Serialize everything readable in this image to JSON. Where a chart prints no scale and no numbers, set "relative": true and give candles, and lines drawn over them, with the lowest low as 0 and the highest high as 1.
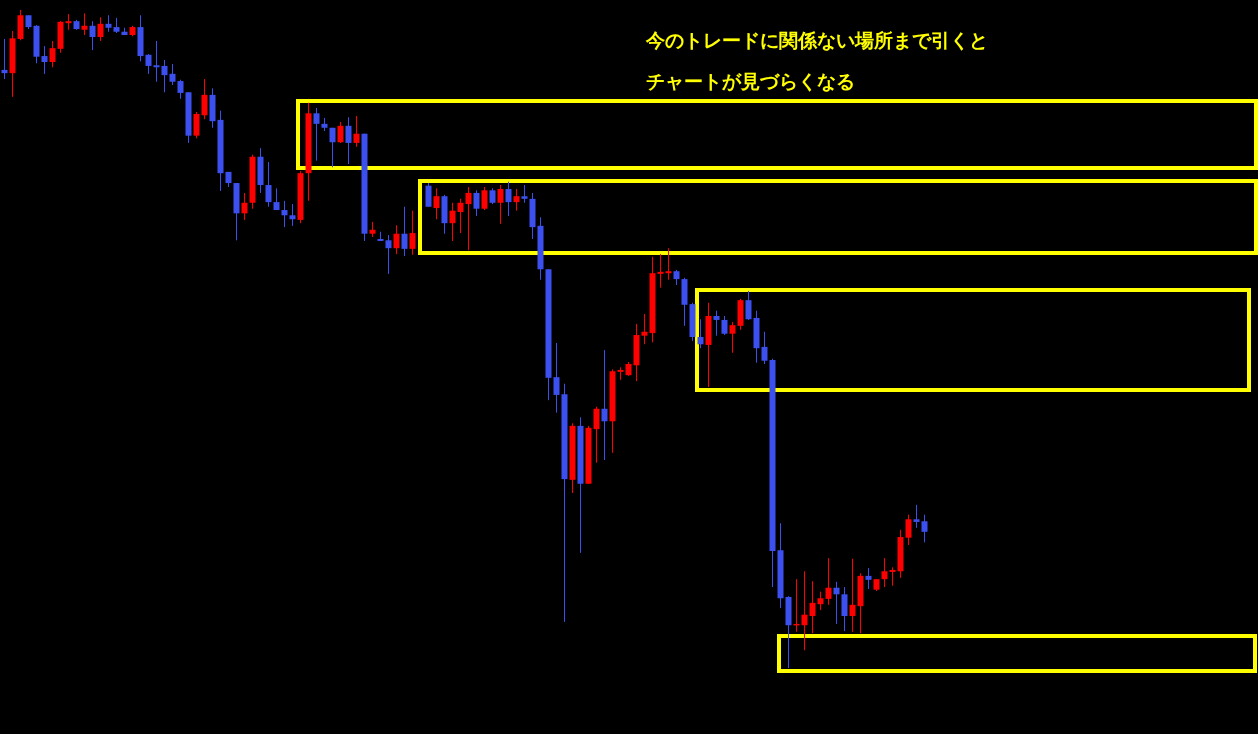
{
  "chart_data": {
    "type": "candlestick",
    "relative": true,
    "categories": [
      null,
      null,
      null,
      null,
      null,
      null,
      null,
      null,
      null,
      null,
      null,
      null,
      null,
      null,
      null,
      null,
      null,
      null,
      null,
      null,
      null,
      null,
      null,
      null,
      null,
      null,
      null,
      null,
      null,
      null,
      null,
      null,
      null,
      null,
      null,
      null,
      null,
      null,
      null,
      null,
      null,
      null,
      null,
      null,
      null,
      null,
      null,
      null,
      null,
      null,
      null,
      null,
      null,
      null,
      null,
      null,
      null,
      null,
      null,
      null,
      null,
      null,
      null,
      null,
      null,
      null,
      null,
      null,
      null,
      null,
      null,
      null,
      null,
      null,
      null,
      null,
      null,
      null,
      null,
      null,
      null,
      null,
      null,
      null,
      null,
      null,
      null,
      null,
      null,
      null,
      null,
      null,
      null,
      null,
      null,
      null,
      null,
      null,
      null,
      null,
      null,
      null,
      null,
      null,
      null,
      null,
      null,
      null,
      null,
      null,
      null,
      null,
      null,
      null,
      null,
      null
    ],
    "ohlc": [
      [
        0.909,
        0.956,
        0.895,
        0.904
      ],
      [
        0.904,
        0.968,
        0.868,
        0.957
      ],
      [
        0.956,
        1,
        0.954,
        0.992
      ],
      [
        0.992,
        0.992,
        0.971,
        0.974
      ],
      [
        0.976,
        0.977,
        0.919,
        0.929
      ],
      [
        0.93,
        0.945,
        0.903,
        0.921
      ],
      [
        0.921,
        0.953,
        0.913,
        0.942
      ],
      [
        0.941,
        0.983,
        0.935,
        0.982
      ],
      [
        0.98,
        0.994,
        0.97,
        0.983
      ],
      [
        0.983,
        0.985,
        0.97,
        0.971
      ],
      [
        0.97,
        0.995,
        0.962,
        0.976
      ],
      [
        0.976,
        0.983,
        0.939,
        0.959
      ],
      [
        0.959,
        0.989,
        0.953,
        0.979
      ],
      [
        0.979,
        0.992,
        0.967,
        0.973
      ],
      [
        0.974,
        0.988,
        0.965,
        0.967
      ],
      [
        0.967,
        0.973,
        0.962,
        0.962
      ],
      [
        0.962,
        0.976,
        0.96,
        0.974
      ],
      [
        0.974,
        0.992,
        0.922,
        0.93
      ],
      [
        0.932,
        0.933,
        0.903,
        0.915
      ],
      [
        0.916,
        0.953,
        0.891,
        0.913
      ],
      [
        0.915,
        0.924,
        0.875,
        0.901
      ],
      [
        0.903,
        0.918,
        0.886,
        0.891
      ],
      [
        0.892,
        0.894,
        0.865,
        0.874
      ],
      [
        0.875,
        0.875,
        0.798,
        0.809
      ],
      [
        0.809,
        0.845,
        0.805,
        0.842
      ],
      [
        0.84,
        0.895,
        0.834,
        0.871
      ],
      [
        0.871,
        0.881,
        0.821,
        0.831
      ],
      [
        0.833,
        0.847,
        0.725,
        0.752
      ],
      [
        0.754,
        0.754,
        0.731,
        0.737
      ],
      [
        0.737,
        0.737,
        0.65,
        0.691
      ],
      [
        0.691,
        0.722,
        0.681,
        0.707
      ],
      [
        0.707,
        0.78,
        0.698,
        0.777
      ],
      [
        0.777,
        0.79,
        0.722,
        0.734
      ],
      [
        0.734,
        0.769,
        0.701,
        0.708
      ],
      [
        0.708,
        0.729,
        0.696,
        0.696
      ],
      [
        0.696,
        0.71,
        0.67,
        0.688
      ],
      [
        0.688,
        0.705,
        0.672,
        0.682
      ],
      [
        0.681,
        0.755,
        0.676,
        0.752
      ],
      [
        0.752,
        0.859,
        0.71,
        0.843
      ],
      [
        0.843,
        0.851,
        0.771,
        0.827
      ],
      [
        0.827,
        0.836,
        0.816,
        0.821
      ],
      [
        0.821,
        0.821,
        0.761,
        0.799
      ],
      [
        0.799,
        0.83,
        0.798,
        0.824
      ],
      [
        0.824,
        0.837,
        0.766,
        0.798
      ],
      [
        0.798,
        0.839,
        0.792,
        0.812
      ],
      [
        0.812,
        0.812,
        0.649,
        0.66
      ],
      [
        0.66,
        0.678,
        0.655,
        0.666
      ],
      [
        0.652,
        0.663,
        0.649,
        0.649
      ],
      [
        0.65,
        0.658,
        0.599,
        0.638
      ],
      [
        0.638,
        0.673,
        0.629,
        0.66
      ],
      [
        0.66,
        0.701,
        0.626,
        0.637
      ],
      [
        0.637,
        0.695,
        0.628,
        0.661
      ],
      null,
      [
        0.733,
        0.737,
        0.701,
        0.701
      ],
      [
        0.699,
        0.729,
        0.682,
        0.717
      ],
      [
        0.717,
        0.719,
        0.66,
        0.676
      ],
      [
        0.676,
        0.707,
        0.649,
        0.695
      ],
      [
        0.693,
        0.713,
        0.661,
        0.707
      ],
      [
        0.705,
        0.731,
        0.635,
        0.722
      ],
      [
        0.722,
        0.726,
        0.687,
        0.698
      ],
      [
        0.698,
        0.731,
        0.696,
        0.726
      ],
      [
        0.726,
        0.729,
        0.705,
        0.707
      ],
      [
        0.707,
        0.734,
        0.675,
        0.728
      ],
      [
        0.728,
        0.739,
        0.687,
        0.708
      ],
      [
        0.708,
        0.728,
        0.695,
        0.717
      ],
      [
        0.717,
        0.734,
        0.707,
        0.713
      ],
      [
        0.713,
        0.722,
        0.652,
        0.67
      ],
      [
        0.672,
        0.685,
        0.59,
        0.606
      ],
      [
        0.606,
        0.606,
        0.407,
        0.441
      ],
      [
        0.442,
        0.494,
        0.388,
        0.415
      ],
      [
        0.416,
        0.432,
        0.07,
        0.287
      ],
      [
        0.286,
        0.372,
        0.266,
        0.368
      ],
      [
        0.368,
        0.381,
        0.175,
        0.28
      ],
      [
        0.28,
        0.368,
        0.28,
        0.365
      ],
      [
        0.363,
        0.397,
        0.312,
        0.394
      ],
      [
        0.394,
        0.483,
        0.316,
        0.375
      ],
      [
        0.375,
        0.454,
        0.327,
        0.451
      ],
      [
        0.45,
        0.457,
        0.438,
        0.453
      ],
      [
        0.445,
        0.465,
        0.444,
        0.462
      ],
      [
        0.46,
        0.523,
        0.436,
        0.506
      ],
      [
        0.505,
        0.538,
        0.492,
        0.511
      ],
      [
        0.509,
        0.625,
        0.495,
        0.6
      ],
      [
        0.599,
        0.629,
        0.578,
        0.602
      ],
      [
        0.6,
        0.638,
        0.59,
        0.603
      ],
      [
        0.603,
        0.605,
        0.582,
        0.591
      ],
      [
        0.591,
        0.593,
        0.52,
        0.552
      ],
      [
        0.553,
        0.555,
        0.497,
        0.503
      ],
      [
        0.503,
        0.53,
        0.486,
        0.492
      ],
      [
        0.491,
        0.555,
        0.427,
        0.535
      ],
      [
        0.535,
        0.543,
        0.505,
        0.529
      ],
      [
        0.529,
        0.535,
        0.506,
        0.508
      ],
      [
        0.508,
        0.526,
        0.479,
        0.521
      ],
      [
        0.52,
        0.561,
        0.514,
        0.559
      ],
      [
        0.559,
        0.573,
        0.529,
        0.53
      ],
      [
        0.532,
        0.543,
        0.464,
        0.486
      ],
      [
        0.488,
        0.511,
        0.462,
        0.467
      ],
      [
        0.468,
        0.47,
        0.123,
        0.178
      ],
      [
        0.179,
        0.22,
        0.091,
        0.106
      ],
      [
        0.108,
        0.109,
        0,
        0.065
      ],
      [
        0.065,
        0.135,
        0.055,
        0.067
      ],
      [
        0.065,
        0.147,
        0.027,
        0.081
      ],
      [
        0.079,
        0.132,
        0.053,
        0.099
      ],
      [
        0.097,
        0.116,
        0.088,
        0.106
      ],
      [
        0.105,
        0.167,
        0.096,
        0.122
      ],
      [
        0.122,
        0.131,
        0.067,
        0.112
      ],
      [
        0.112,
        0.123,
        0.056,
        0.079
      ],
      [
        0.079,
        0.166,
        0.055,
        0.096
      ],
      [
        0.094,
        0.144,
        0.053,
        0.14
      ],
      [
        0.14,
        0.152,
        0.12,
        0.134
      ],
      [
        0.119,
        0.135,
        0.117,
        0.135
      ],
      [
        0.135,
        0.167,
        0.123,
        0.147
      ],
      [
        0.146,
        0.153,
        0.125,
        0.149
      ],
      [
        0.147,
        0.21,
        0.137,
        0.199
      ],
      [
        0.198,
        0.233,
        0.187,
        0.226
      ],
      [
        0.226,
        0.248,
        0.213,
        0.222
      ],
      [
        0.223,
        0.233,
        0.191,
        0.207
      ]
    ],
    "colors": [
      "#3c50f0",
      "#ff0000",
      "#ff0000",
      "#3c50f0",
      "#3c50f0",
      "#3c50f0",
      "#ff0000",
      "#ff0000",
      "#ff0000",
      "#3c50f0",
      "#ff0000",
      "#3c50f0",
      "#ff0000",
      "#3c50f0",
      "#3c50f0",
      "#3c50f0",
      "#ff0000",
      "#3c50f0",
      "#3c50f0",
      "#3c50f0",
      "#3c50f0",
      "#3c50f0",
      "#3c50f0",
      "#3c50f0",
      "#ff0000",
      "#ff0000",
      "#3c50f0",
      "#3c50f0",
      "#3c50f0",
      "#3c50f0",
      "#ff0000",
      "#ff0000",
      "#3c50f0",
      "#3c50f0",
      "#3c50f0",
      "#3c50f0",
      "#3c50f0",
      "#ff0000",
      "#ff0000",
      "#3c50f0",
      "#3c50f0",
      "#3c50f0",
      "#ff0000",
      "#3c50f0",
      "#ff0000",
      "#3c50f0",
      "#ff0000",
      "#3c50f0",
      "#3c50f0",
      "#ff0000",
      "#3c50f0",
      "#ff0000",
      null,
      "#3c50f0",
      "#ff0000",
      "#3c50f0",
      "#ff0000",
      "#ff0000",
      "#ff0000",
      "#3c50f0",
      "#ff0000",
      "#3c50f0",
      "#ff0000",
      "#3c50f0",
      "#ff0000",
      "#3c50f0",
      "#3c50f0",
      "#3c50f0",
      "#3c50f0",
      "#3c50f0",
      "#3c50f0",
      "#ff0000",
      "#3c50f0",
      "#ff0000",
      "#ff0000",
      "#3c50f0",
      "#ff0000",
      "#ff0000",
      "#ff0000",
      "#ff0000",
      "#ff0000",
      "#ff0000",
      "#ff0000",
      "#ff0000",
      "#3c50f0",
      "#3c50f0",
      "#3c50f0",
      "#3c50f0",
      "#ff0000",
      "#3c50f0",
      "#3c50f0",
      "#ff0000",
      "#ff0000",
      "#3c50f0",
      "#3c50f0",
      "#3c50f0",
      "#3c50f0",
      "#3c50f0",
      "#3c50f0",
      "#ff0000",
      "#ff0000",
      "#ff0000",
      "#ff0000",
      "#ff0000",
      "#3c50f0",
      "#3c50f0",
      "#ff0000",
      "#ff0000",
      "#3c50f0",
      "#ff0000",
      "#ff0000",
      "#ff0000",
      "#ff0000",
      "#ff0000",
      "#3c50f0",
      "#3c50f0"
    ],
    "annotations": [
      "今のトレードに関係ない場所まで引くと",
      "チャートが見づらくなる"
    ]
  }
}
